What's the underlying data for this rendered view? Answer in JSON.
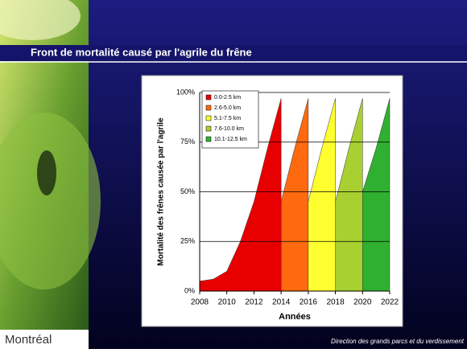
{
  "slide": {
    "title": "Front de mortalité causé par l'agrile du frêne",
    "logo": "Montréal",
    "footer": "Direction des grands parcs et du verdissement"
  },
  "chart_data": {
    "type": "area",
    "x": [
      2008,
      2009,
      2010,
      2011,
      2012,
      2013,
      2014,
      2015,
      2016,
      2017,
      2018,
      2019,
      2020,
      2021,
      2022
    ],
    "xlim": [
      2008,
      2022
    ],
    "xticks": [
      2008,
      2010,
      2012,
      2014,
      2016,
      2018,
      2020,
      2022
    ],
    "ylim": [
      0,
      100
    ],
    "yticks": [
      {
        "value": 0,
        "label": "0%"
      },
      {
        "value": 25,
        "label": "25%"
      },
      {
        "value": 50,
        "label": "50%"
      },
      {
        "value": 75,
        "label": "75%"
      },
      {
        "value": 100,
        "label": "100%"
      }
    ],
    "x_label": "Années",
    "y_label": "Mortalité des frênes causée par l'agrile",
    "grid": true,
    "legend": "upper left",
    "series": [
      {
        "name": "0.0-2.5 km",
        "color": "#e80000",
        "values": [
          5,
          6,
          10,
          25,
          45,
          72,
          97,
          null,
          null,
          null,
          null,
          null,
          null,
          null,
          null
        ]
      },
      {
        "name": "2.6-5.0 km",
        "color": "#ff6a10",
        "values": [
          2,
          3,
          5,
          6,
          10,
          25,
          45,
          72,
          97,
          null,
          null,
          null,
          null,
          null,
          null
        ]
      },
      {
        "name": "5.1-7.5 km",
        "color": "#ffff30",
        "values": [
          0,
          1,
          2,
          3,
          5,
          6,
          10,
          25,
          45,
          72,
          97,
          null,
          null,
          null,
          null
        ]
      },
      {
        "name": "7.6-10.0 km",
        "color": "#a8d030",
        "values": [
          0,
          0,
          1,
          2,
          3,
          4,
          5,
          6,
          10,
          25,
          45,
          72,
          97,
          null,
          null
        ]
      },
      {
        "name": "10.1-12.5 km",
        "color": "#30b030",
        "values": [
          0,
          0,
          0,
          1,
          2,
          3,
          4,
          5,
          6,
          8,
          10,
          25,
          50,
          72,
          97
        ]
      }
    ]
  }
}
